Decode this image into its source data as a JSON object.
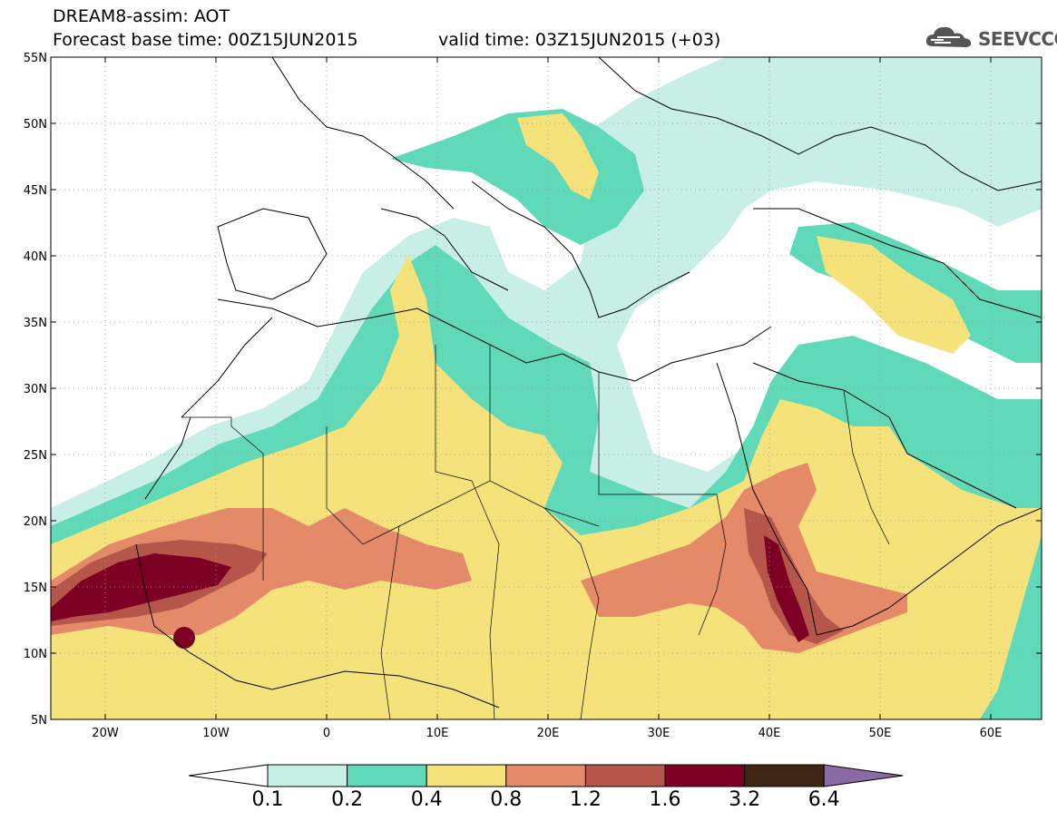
{
  "header": {
    "line1": "DREAM8-assim: AOT",
    "line2a": "Forecast base time: 00Z15JUN2015",
    "line2b": "valid time: 03Z15JUN2015 (+03)"
  },
  "logo": {
    "text": "SEEVCCC",
    "icon": "cloud-icon"
  },
  "map": {
    "lat_ticks": [
      "55N",
      "50N",
      "45N",
      "40N",
      "35N",
      "30N",
      "25N",
      "20N",
      "15N",
      "10N",
      "5N"
    ],
    "lon_ticks": [
      "20W",
      "10W",
      "0",
      "10E",
      "20E",
      "30E",
      "40E",
      "50E",
      "60E"
    ]
  },
  "colorbar": {
    "colors": [
      "#ffffff",
      "#c8efe6",
      "#5fd9b7",
      "#f6e27a",
      "#e48a68",
      "#b6564b",
      "#7d0024",
      "#3e2516",
      "#8c6aa6"
    ],
    "labels": [
      "0.1",
      "0.2",
      "0.4",
      "0.8",
      "1.2",
      "1.6",
      "3.2",
      "6.4"
    ]
  }
}
